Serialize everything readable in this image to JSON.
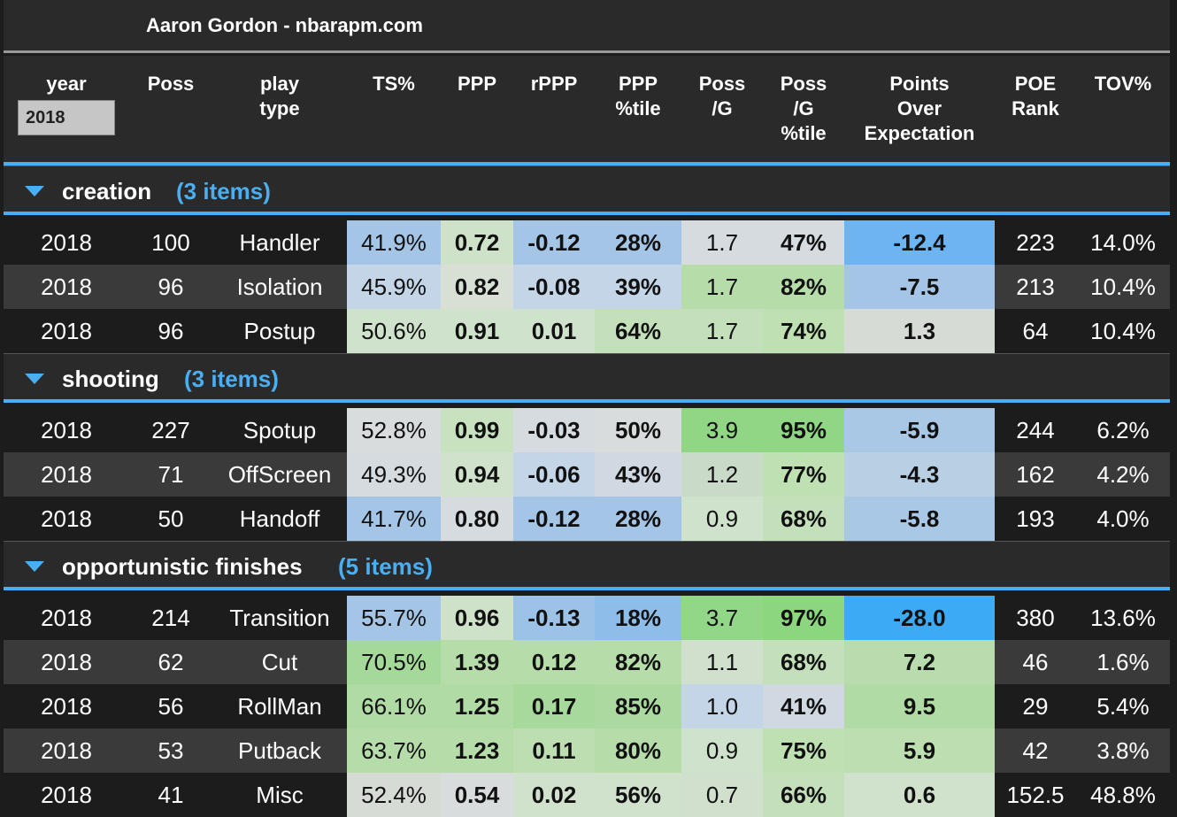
{
  "title": "Aaron Gordon - nbarapm.com",
  "year_input": {
    "value": "2018"
  },
  "headers": {
    "year": "year",
    "poss": "Poss",
    "play_type": "play\ntype",
    "ts": "TS%",
    "ppp": "PPP",
    "rppp": "rPPP",
    "ppp_pct": "PPP\n%tile",
    "poss_g": "Poss\n/G",
    "poss_g_pct": "Poss\n/G\n%tile",
    "poe": "Points\nOver\nExpectation",
    "poe_rank": "POE\nRank",
    "tov": "TOV%"
  },
  "groups": [
    {
      "name": "creation",
      "count": "(3 items)",
      "rows": [
        {
          "year": "2018",
          "poss": "100",
          "type": "Handler",
          "ts": "41.9%",
          "ppp": "0.72",
          "rppp": "-0.12",
          "ppp_pct": "28%",
          "poss_g": "1.7",
          "poss_g_pct": "47%",
          "poe": "-12.4",
          "rank": "223",
          "tov": "14.0%",
          "colors": {
            "ts": "#a5c5e6",
            "ppp": "#cde2c8",
            "rppp": "#a5c5e6",
            "ppp_pct": "#a5c5e6",
            "poss_g": "#d6dbe0",
            "poss_g_pct": "#d6dbe0",
            "poe": "#6cb4f2"
          }
        },
        {
          "year": "2018",
          "poss": "96",
          "type": "Isolation",
          "ts": "45.9%",
          "ppp": "0.82",
          "rppp": "-0.08",
          "ppp_pct": "39%",
          "poss_g": "1.7",
          "poss_g_pct": "82%",
          "poe": "-7.5",
          "rank": "213",
          "tov": "10.4%",
          "colors": {
            "ts": "#c3d5e6",
            "ppp": "#d8e0d6",
            "rppp": "#c3d5e6",
            "ppp_pct": "#c3d5e6",
            "poss_g": "#b6dcaa",
            "poss_g_pct": "#b6dcaa",
            "poe": "#a5c5e6"
          }
        },
        {
          "year": "2018",
          "poss": "96",
          "type": "Postup",
          "ts": "50.6%",
          "ppp": "0.91",
          "rppp": "0.01",
          "ppp_pct": "64%",
          "poss_g": "1.7",
          "poss_g_pct": "74%",
          "poe": "1.3",
          "rank": "64",
          "tov": "10.4%",
          "colors": {
            "ts": "#cfe2cc",
            "ppp": "#cfe2cc",
            "rppp": "#cfe2cc",
            "ppp_pct": "#c3e0bb",
            "poss_g": "#c3e0bb",
            "poss_g_pct": "#bfe0b3",
            "poe": "#d6dbd6"
          }
        }
      ]
    },
    {
      "name": "shooting",
      "count": "(3 items)",
      "rows": [
        {
          "year": "2018",
          "poss": "227",
          "type": "Spotup",
          "ts": "52.8%",
          "ppp": "0.99",
          "rppp": "-0.03",
          "ppp_pct": "50%",
          "poss_g": "3.9",
          "poss_g_pct": "95%",
          "poe": "-5.9",
          "rank": "244",
          "tov": "6.2%",
          "colors": {
            "ts": "#d8dcdc",
            "ppp": "#c8e2c0",
            "rppp": "#d6dbe0",
            "ppp_pct": "#d8dcdc",
            "poss_g": "#90d684",
            "poss_g_pct": "#90d684",
            "poe": "#a9c8e6"
          }
        },
        {
          "year": "2018",
          "poss": "71",
          "type": "OffScreen",
          "ts": "49.3%",
          "ppp": "0.94",
          "rppp": "-0.06",
          "ppp_pct": "43%",
          "poss_g": "1.2",
          "poss_g_pct": "77%",
          "poe": "-4.3",
          "rank": "162",
          "tov": "4.2%",
          "colors": {
            "ts": "#d6dbe0",
            "ppp": "#d0e1cc",
            "rppp": "#c3d5e6",
            "ppp_pct": "#d0d8e2",
            "poss_g": "#c9dac9",
            "poss_g_pct": "#bfe0b3",
            "poe": "#b8cfe4"
          }
        },
        {
          "year": "2018",
          "poss": "50",
          "type": "Handoff",
          "ts": "41.7%",
          "ppp": "0.80",
          "rppp": "-0.12",
          "ppp_pct": "28%",
          "poss_g": "0.9",
          "poss_g_pct": "68%",
          "poe": "-5.8",
          "rank": "193",
          "tov": "4.0%",
          "colors": {
            "ts": "#a5c5e6",
            "ppp": "#d6dbe0",
            "rppp": "#a5c5e6",
            "ppp_pct": "#a5c5e6",
            "poss_g": "#cfe2cc",
            "poss_g_pct": "#c3e0bb",
            "poe": "#a9c8e6"
          }
        }
      ]
    },
    {
      "name": "opportunistic finishes",
      "count": "(5 items)",
      "rows": [
        {
          "year": "2018",
          "poss": "214",
          "type": "Transition",
          "ts": "55.7%",
          "ppp": "0.96",
          "rppp": "-0.13",
          "ppp_pct": "18%",
          "poss_g": "3.7",
          "poss_g_pct": "97%",
          "poe": "-28.0",
          "rank": "380",
          "tov": "13.6%",
          "colors": {
            "ts": "#a5c5e6",
            "ppp": "#cde2c8",
            "rppp": "#9cc2e8",
            "ppp_pct": "#8fbde9",
            "poss_g": "#92d688",
            "poss_g_pct": "#8bd67e",
            "poe": "#3caaf4"
          }
        },
        {
          "year": "2018",
          "poss": "62",
          "type": "Cut",
          "ts": "70.5%",
          "ppp": "1.39",
          "rppp": "0.12",
          "ppp_pct": "82%",
          "poss_g": "1.1",
          "poss_g_pct": "68%",
          "poe": "7.2",
          "rank": "46",
          "tov": "1.6%",
          "colors": {
            "ts": "#a5d99a",
            "ppp": "#b6dcaa",
            "rppp": "#b6dcaa",
            "ppp_pct": "#b6dcaa",
            "poss_g": "#d0e0cc",
            "poss_g_pct": "#c3e0bb",
            "poe": "#b8dcae"
          }
        },
        {
          "year": "2018",
          "poss": "56",
          "type": "RollMan",
          "ts": "66.1%",
          "ppp": "1.25",
          "rppp": "0.17",
          "ppp_pct": "85%",
          "poss_g": "1.0",
          "poss_g_pct": "41%",
          "poe": "9.5",
          "rank": "29",
          "tov": "5.4%",
          "colors": {
            "ts": "#b0dba4",
            "ppp": "#b0dba4",
            "rppp": "#a8d99c",
            "ppp_pct": "#acd9a0",
            "poss_g": "#c3d5e6",
            "poss_g_pct": "#d0d8e2",
            "poe": "#b0dba4"
          }
        },
        {
          "year": "2018",
          "poss": "53",
          "type": "Putback",
          "ts": "63.7%",
          "ppp": "1.23",
          "rppp": "0.11",
          "ppp_pct": "80%",
          "poss_g": "0.9",
          "poss_g_pct": "75%",
          "poe": "5.9",
          "rank": "42",
          "tov": "3.8%",
          "colors": {
            "ts": "#b6dcaa",
            "ppp": "#b6dcaa",
            "rppp": "#bcdeb0",
            "ppp_pct": "#b6dcaa",
            "poss_g": "#cfe2cc",
            "poss_g_pct": "#bfe0b3",
            "poe": "#bcdeb0"
          }
        },
        {
          "year": "2018",
          "poss": "41",
          "type": "Misc",
          "ts": "52.4%",
          "ppp": "0.54",
          "rppp": "0.02",
          "ppp_pct": "56%",
          "poss_g": "0.7",
          "poss_g_pct": "66%",
          "poe": "0.6",
          "rank": "152.5",
          "tov": "48.8%",
          "colors": {
            "ts": "#d6dbd6",
            "ppp": "#d8dcdc",
            "rppp": "#d0e1cc",
            "ppp_pct": "#d0e1cc",
            "poss_g": "#d0e0cc",
            "poss_g_pct": "#c3e0bb",
            "poe": "#d0e1cc"
          }
        }
      ]
    }
  ]
}
